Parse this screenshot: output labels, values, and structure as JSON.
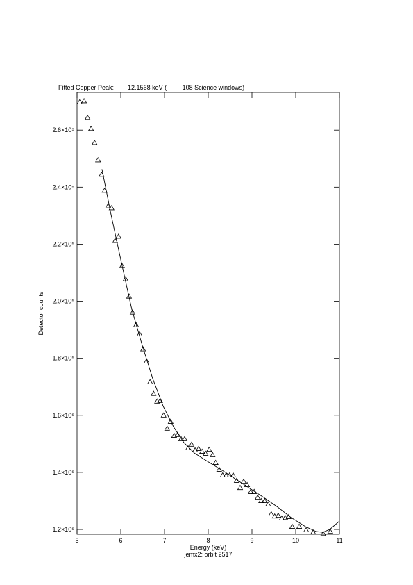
{
  "chart_data": {
    "type": "scatter",
    "title": "Fitted Copper Peak:        12.1568 keV (         108 Science windows)",
    "xlabel": "Energy (keV)",
    "ylabel": "Detector counts",
    "subtitle": "jemx2: orbit 2517",
    "xlim": [
      5,
      11
    ],
    "xticks": [
      5,
      6,
      7,
      8,
      9,
      10,
      11
    ],
    "ylim": [
      118300,
      273200
    ],
    "yticks": [
      {
        "value": 120000,
        "label": "1.2×10⁵"
      },
      {
        "value": 140000,
        "label": "1.4×10⁵"
      },
      {
        "value": 160000,
        "label": "1.6×10⁵"
      },
      {
        "value": 180000,
        "label": "1.8×10⁵"
      },
      {
        "value": 200000,
        "label": "2.0×10⁵"
      },
      {
        "value": 220000,
        "label": "2.2×10⁵"
      },
      {
        "value": 240000,
        "label": "2.4×10⁵"
      },
      {
        "value": 260000,
        "label": "2.6×10⁵"
      }
    ],
    "series": [
      {
        "marker": "triangle",
        "color": "#000000",
        "x": [
          5.06,
          5.16,
          5.24,
          5.32,
          5.4,
          5.48,
          5.56,
          5.63,
          5.71,
          5.79,
          5.87,
          5.95,
          6.03,
          6.11,
          6.19,
          6.27,
          6.35,
          6.43,
          6.51,
          6.59,
          6.67,
          6.75,
          6.83,
          6.9,
          6.98,
          7.06,
          7.14,
          7.22,
          7.3,
          7.38,
          7.46,
          7.54,
          7.62,
          7.7,
          7.78,
          7.86,
          7.94,
          8.02,
          8.1,
          8.17,
          8.25,
          8.33,
          8.41,
          8.49,
          8.57,
          8.65,
          8.73,
          8.81,
          8.89,
          8.97,
          9.05,
          9.13,
          9.21,
          9.29,
          9.37,
          9.44,
          9.52,
          9.6,
          9.68,
          9.76,
          9.84,
          9.92,
          10.08,
          10.24,
          10.4,
          10.63,
          10.79
        ],
        "values": [
          269800,
          270200,
          264400,
          260500,
          255600,
          249500,
          244400,
          238800,
          233400,
          232700,
          221200,
          222700,
          212400,
          207800,
          201700,
          196100,
          191700,
          188500,
          183200,
          179000,
          171700,
          167600,
          164900,
          165100,
          160000,
          155400,
          157800,
          152900,
          153200,
          151700,
          151700,
          148500,
          149800,
          147800,
          148300,
          147300,
          146600,
          148000,
          146100,
          143400,
          141000,
          139000,
          139000,
          139000,
          139000,
          137100,
          134600,
          136800,
          135600,
          133200,
          133200,
          131200,
          130000,
          130000,
          128800,
          125400,
          124600,
          124900,
          123900,
          124100,
          124400,
          121000,
          121000,
          119800,
          119000,
          118500,
          119300
        ]
      },
      {
        "type": "line",
        "color": "#000000",
        "x": [
          5.57,
          5.78,
          6.02,
          6.25,
          6.49,
          6.73,
          6.97,
          7.21,
          7.44,
          7.68,
          8.0,
          8.32,
          8.63,
          8.95,
          9.27,
          9.59,
          9.9,
          10.22,
          10.46,
          10.62,
          10.78,
          11.0
        ],
        "values": [
          246300,
          230200,
          213200,
          197300,
          184600,
          172900,
          163200,
          155900,
          150500,
          146800,
          143700,
          140700,
          137600,
          134400,
          131200,
          127800,
          124100,
          121000,
          119300,
          119000,
          120000,
          122900
        ]
      }
    ]
  }
}
